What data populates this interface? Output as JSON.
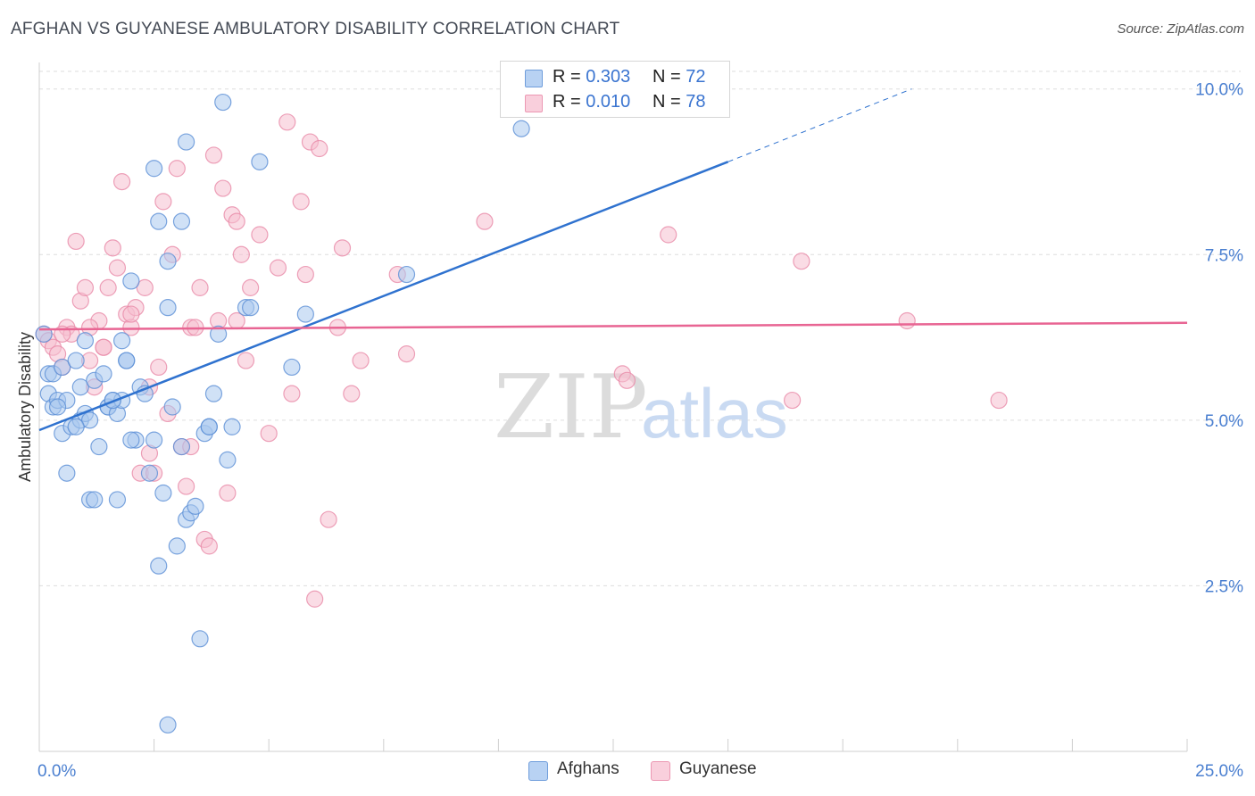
{
  "title": "AFGHAN VS GUYANESE AMBULATORY DISABILITY CORRELATION CHART",
  "source": "Source: ZipAtlas.com",
  "watermark": {
    "zip": "ZIP",
    "atlas": "atlas"
  },
  "legend": {
    "rows": [
      {
        "r_label": "R =",
        "r_value": "0.303",
        "n_label": "N =",
        "n_value": "72"
      },
      {
        "r_label": "R =",
        "r_value": "0.010",
        "n_label": "N =",
        "n_value": "78"
      }
    ]
  },
  "bottom_legend": {
    "items": [
      "Afghans",
      "Guyanese"
    ]
  },
  "colors": {
    "afghans_fill": "#a9c8ef",
    "afghans_stroke": "#5b8fd6",
    "afghans_line": "#2f72cf",
    "guyanese_fill": "#f6bfd0",
    "guyanese_stroke": "#e98aa8",
    "guyanese_line": "#e86593",
    "grid": "#dddddd",
    "tick_label": "#4a7fd0"
  },
  "chart_data": {
    "type": "scatter",
    "title": "AFGHAN VS GUYANESE AMBULATORY DISABILITY CORRELATION CHART",
    "xlabel": "",
    "ylabel": "Ambulatory Disability",
    "xlim": [
      0,
      25
    ],
    "ylim": [
      0,
      10.4
    ],
    "x_tick_labels": [
      {
        "value": 0,
        "label": "0.0%"
      },
      {
        "value": 25,
        "label": "25.0%"
      }
    ],
    "y_tick_labels": [
      {
        "value": 10,
        "label": "10.0%"
      },
      {
        "value": 7.5,
        "label": "7.5%"
      },
      {
        "value": 5,
        "label": "5.0%"
      },
      {
        "value": 2.5,
        "label": "2.5%"
      }
    ],
    "x_minor_ticks": [
      2.5,
      5,
      7.5,
      10,
      12.5,
      15,
      17.5,
      20,
      22.5,
      25
    ],
    "grid": "horizontal dashed",
    "legend_placement": "top-center",
    "series": [
      {
        "name": "Afghans",
        "trend": {
          "x": [
            0,
            15
          ],
          "y": [
            4.85,
            8.9
          ],
          "dashed_extension_to": [
            19,
            10.0
          ]
        },
        "points": [
          [
            0.1,
            6.3
          ],
          [
            0.2,
            5.7
          ],
          [
            0.2,
            5.4
          ],
          [
            0.3,
            5.7
          ],
          [
            0.3,
            5.2
          ],
          [
            0.4,
            5.3
          ],
          [
            0.5,
            5.8
          ],
          [
            0.5,
            4.8
          ],
          [
            0.6,
            4.2
          ],
          [
            0.6,
            5.3
          ],
          [
            0.7,
            4.9
          ],
          [
            0.8,
            5.9
          ],
          [
            0.9,
            5.0
          ],
          [
            0.9,
            5.5
          ],
          [
            1.0,
            6.2
          ],
          [
            1.0,
            5.1
          ],
          [
            1.1,
            5.0
          ],
          [
            1.1,
            3.8
          ],
          [
            1.2,
            3.8
          ],
          [
            1.2,
            5.6
          ],
          [
            1.3,
            4.6
          ],
          [
            1.4,
            5.7
          ],
          [
            1.5,
            5.2
          ],
          [
            1.5,
            5.2
          ],
          [
            1.6,
            5.3
          ],
          [
            1.7,
            5.1
          ],
          [
            1.7,
            3.8
          ],
          [
            1.8,
            6.2
          ],
          [
            1.8,
            5.3
          ],
          [
            1.9,
            5.9
          ],
          [
            2.0,
            7.1
          ],
          [
            2.1,
            4.7
          ],
          [
            2.2,
            5.5
          ],
          [
            2.3,
            5.4
          ],
          [
            2.4,
            4.2
          ],
          [
            2.5,
            4.7
          ],
          [
            2.5,
            8.8
          ],
          [
            2.6,
            2.8
          ],
          [
            2.6,
            8.0
          ],
          [
            2.7,
            3.9
          ],
          [
            2.8,
            6.7
          ],
          [
            2.8,
            7.4
          ],
          [
            2.9,
            5.2
          ],
          [
            3.0,
            3.1
          ],
          [
            3.1,
            4.6
          ],
          [
            3.1,
            8.0
          ],
          [
            3.2,
            9.2
          ],
          [
            3.2,
            3.5
          ],
          [
            3.3,
            3.6
          ],
          [
            3.4,
            3.7
          ],
          [
            3.5,
            1.7
          ],
          [
            3.6,
            4.8
          ],
          [
            3.7,
            4.9
          ],
          [
            3.8,
            5.4
          ],
          [
            3.9,
            6.3
          ],
          [
            4.0,
            9.8
          ],
          [
            4.1,
            4.4
          ],
          [
            4.2,
            4.9
          ],
          [
            4.5,
            6.7
          ],
          [
            4.6,
            6.7
          ],
          [
            4.8,
            8.9
          ],
          [
            5.5,
            5.8
          ],
          [
            5.8,
            6.6
          ],
          [
            8.0,
            7.2
          ],
          [
            10.5,
            9.4
          ],
          [
            2.8,
            0.4
          ],
          [
            1.9,
            5.9
          ],
          [
            0.4,
            5.2
          ],
          [
            1.6,
            5.3
          ],
          [
            0.8,
            4.9
          ],
          [
            2.0,
            4.7
          ],
          [
            3.7,
            4.9
          ]
        ]
      },
      {
        "name": "Guyanese",
        "trend": {
          "x": [
            0,
            25
          ],
          "y": [
            6.37,
            6.47
          ]
        },
        "points": [
          [
            0.1,
            6.3
          ],
          [
            0.2,
            6.2
          ],
          [
            0.3,
            6.1
          ],
          [
            0.4,
            6.0
          ],
          [
            0.5,
            5.8
          ],
          [
            0.6,
            6.4
          ],
          [
            0.7,
            6.3
          ],
          [
            0.8,
            7.7
          ],
          [
            0.9,
            6.8
          ],
          [
            1.0,
            7.0
          ],
          [
            1.1,
            5.9
          ],
          [
            1.2,
            5.5
          ],
          [
            1.3,
            6.5
          ],
          [
            1.4,
            6.1
          ],
          [
            1.5,
            7.0
          ],
          [
            1.6,
            7.6
          ],
          [
            1.7,
            7.3
          ],
          [
            1.8,
            8.6
          ],
          [
            1.9,
            6.6
          ],
          [
            2.0,
            6.4
          ],
          [
            2.1,
            6.7
          ],
          [
            2.2,
            4.2
          ],
          [
            2.3,
            7.0
          ],
          [
            2.4,
            5.5
          ],
          [
            2.5,
            4.2
          ],
          [
            2.6,
            5.8
          ],
          [
            2.7,
            8.3
          ],
          [
            2.8,
            5.1
          ],
          [
            2.9,
            7.5
          ],
          [
            3.0,
            8.8
          ],
          [
            3.1,
            4.6
          ],
          [
            3.2,
            4.0
          ],
          [
            3.3,
            6.4
          ],
          [
            3.4,
            6.4
          ],
          [
            3.5,
            7.0
          ],
          [
            3.6,
            3.2
          ],
          [
            3.7,
            3.1
          ],
          [
            3.8,
            9.0
          ],
          [
            3.9,
            6.5
          ],
          [
            4.0,
            8.5
          ],
          [
            4.1,
            3.9
          ],
          [
            4.2,
            8.1
          ],
          [
            4.3,
            8.0
          ],
          [
            4.4,
            7.5
          ],
          [
            4.5,
            5.9
          ],
          [
            4.6,
            7.0
          ],
          [
            4.8,
            7.8
          ],
          [
            5.0,
            4.8
          ],
          [
            5.2,
            7.3
          ],
          [
            5.4,
            9.5
          ],
          [
            5.5,
            5.4
          ],
          [
            5.7,
            8.3
          ],
          [
            5.8,
            7.2
          ],
          [
            5.9,
            9.2
          ],
          [
            6.0,
            2.3
          ],
          [
            6.1,
            9.1
          ],
          [
            6.3,
            3.5
          ],
          [
            6.5,
            6.4
          ],
          [
            6.6,
            7.6
          ],
          [
            6.8,
            5.4
          ],
          [
            7.0,
            5.9
          ],
          [
            7.8,
            7.2
          ],
          [
            8.0,
            6.0
          ],
          [
            9.7,
            8.0
          ],
          [
            12.7,
            5.7
          ],
          [
            12.8,
            5.6
          ],
          [
            13.7,
            7.8
          ],
          [
            16.4,
            5.3
          ],
          [
            16.6,
            7.4
          ],
          [
            18.9,
            6.5
          ],
          [
            20.9,
            5.3
          ],
          [
            2.4,
            4.5
          ],
          [
            1.1,
            6.4
          ],
          [
            3.3,
            4.6
          ],
          [
            0.5,
            6.3
          ],
          [
            2.0,
            6.6
          ],
          [
            4.3,
            6.5
          ],
          [
            1.4,
            6.1
          ]
        ]
      }
    ]
  }
}
